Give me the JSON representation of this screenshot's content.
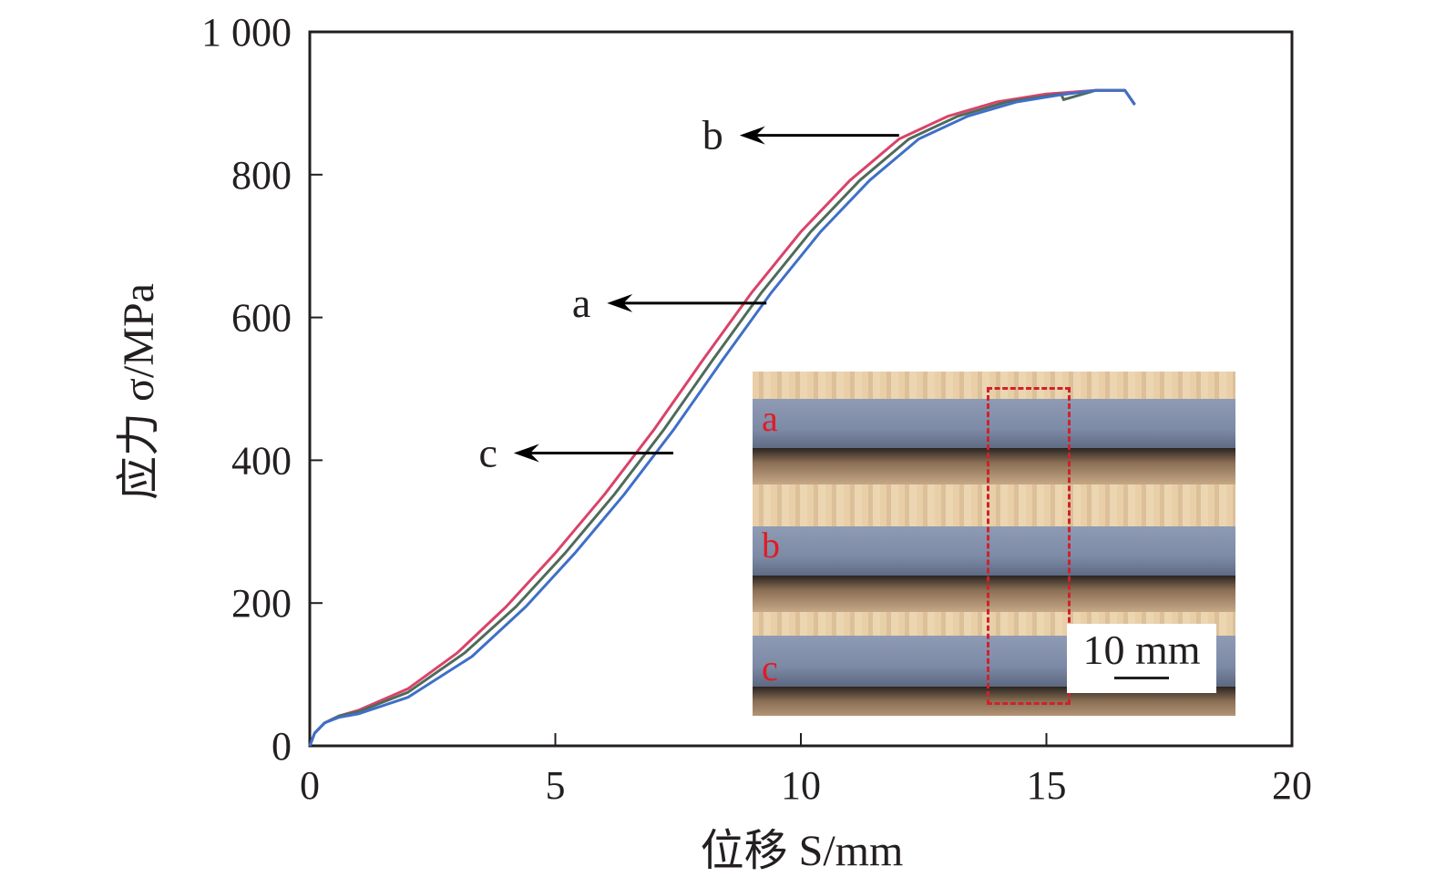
{
  "chart_data": {
    "type": "line",
    "xlabel": "位移 S/mm",
    "ylabel": "应力 σ/MPa",
    "xlim": [
      0,
      20
    ],
    "ylim": [
      0,
      1000
    ],
    "xticks": [
      "0",
      "5",
      "10",
      "15",
      "20"
    ],
    "yticks": [
      "0",
      "200",
      "400",
      "600",
      "800",
      "1 000"
    ],
    "series": [
      {
        "name": "b",
        "color": "#d9436a",
        "x": [
          0,
          0.1,
          0.3,
          0.6,
          1,
          2,
          3,
          4,
          5,
          6,
          7,
          8,
          9,
          10,
          11,
          12,
          13,
          14,
          15,
          16,
          16.6,
          16.8
        ],
        "y": [
          0,
          18,
          32,
          42,
          50,
          80,
          130,
          195,
          270,
          352,
          442,
          540,
          635,
          720,
          792,
          850,
          882,
          902,
          913,
          918,
          918,
          898
        ]
      },
      {
        "name": "a",
        "color": "#4f6b5a",
        "x": [
          0,
          0.1,
          0.3,
          0.6,
          1,
          2,
          3.15,
          4.2,
          5.2,
          6.2,
          7.2,
          8.2,
          9.2,
          10.2,
          11.2,
          12.2,
          13.2,
          14.2,
          15.3,
          15.35,
          16,
          16.6,
          16.8
        ],
        "y": [
          0,
          18,
          32,
          42,
          48,
          75,
          130,
          195,
          270,
          352,
          442,
          540,
          635,
          720,
          792,
          850,
          882,
          902,
          913,
          905,
          918,
          918,
          898
        ]
      },
      {
        "name": "c",
        "color": "#3f6fc9",
        "x": [
          0,
          0.1,
          0.3,
          0.6,
          1,
          2,
          3.3,
          4.4,
          5.4,
          6.4,
          7.4,
          8.4,
          9.4,
          10.4,
          11.4,
          12.4,
          13.4,
          14.4,
          15.3,
          16,
          16.6,
          16.8
        ],
        "y": [
          0,
          18,
          32,
          40,
          45,
          68,
          125,
          195,
          270,
          352,
          442,
          540,
          635,
          720,
          792,
          850,
          882,
          902,
          912,
          918,
          918,
          898
        ]
      }
    ],
    "annotations": [
      {
        "text": "a",
        "arrow_to_x": 9.3,
        "at_y": 620
      },
      {
        "text": "b",
        "arrow_to_x": 12.0,
        "at_y": 855
      },
      {
        "text": "c",
        "arrow_to_x": 7.4,
        "at_y": 410
      }
    ],
    "inset": {
      "labels": [
        "a",
        "b",
        "c"
      ],
      "scale": "10 mm"
    }
  }
}
